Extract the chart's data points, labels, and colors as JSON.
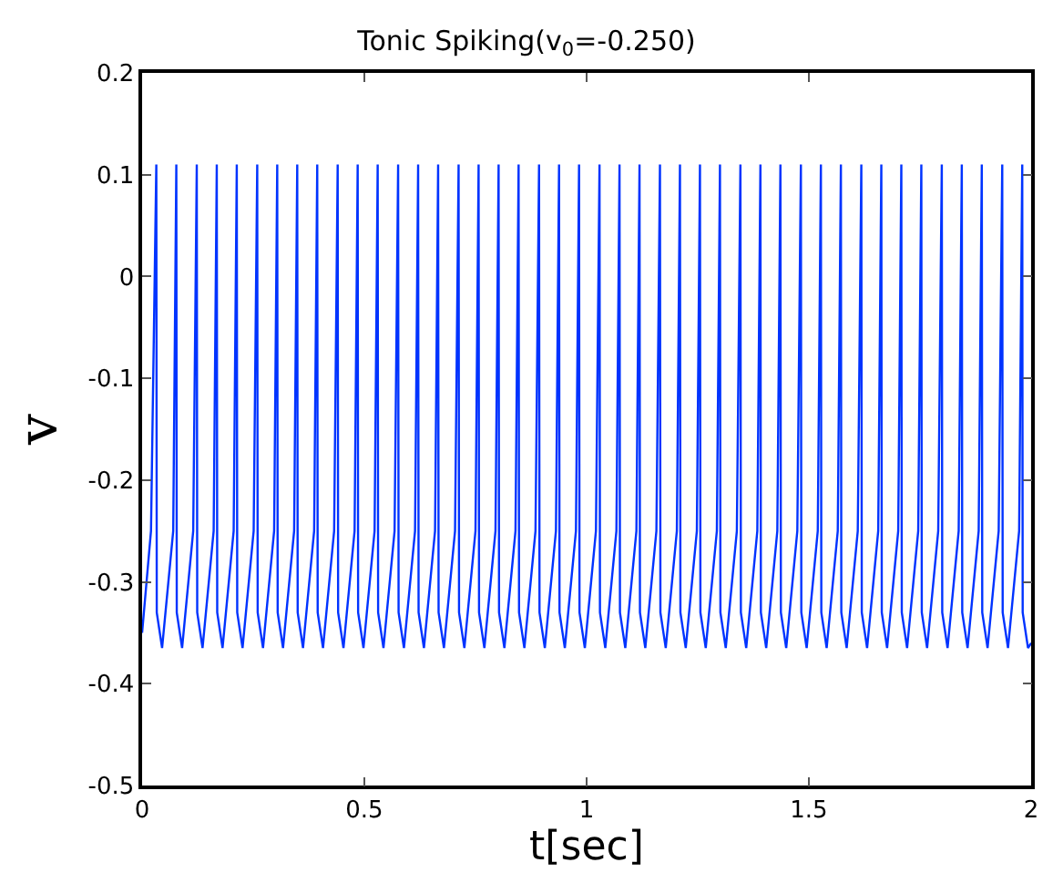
{
  "chart_data": {
    "type": "line",
    "title": "Tonic Spiking(v$_{0}$=-0.250)",
    "xlabel": "t[sec]",
    "ylabel": "v",
    "xlim": [
      0,
      2
    ],
    "xticks": [
      0,
      0.5,
      1,
      1.5,
      2
    ],
    "ylim": [
      -0.5,
      0.2
    ],
    "yticks": [
      -0.5,
      -0.4,
      -0.3,
      -0.2,
      -0.1,
      0,
      0.1,
      0.2
    ],
    "marker": "none",
    "line_style": "solid",
    "series": [
      {
        "color": "#0033ff",
        "x": [
          0,
          0.02,
          0.032,
          0.033,
          0.045,
          0.07,
          0.077,
          0.078,
          0.09,
          0.115,
          0.123,
          0.124,
          0.136,
          0.161,
          0.168,
          0.169,
          0.181,
          0.206,
          0.213,
          0.214,
          0.226,
          0.251,
          0.259,
          0.26,
          0.272,
          0.297,
          0.304,
          0.305,
          0.317,
          0.342,
          0.349,
          0.35,
          0.362,
          0.387,
          0.394,
          0.395,
          0.407,
          0.432,
          0.44,
          0.441,
          0.453,
          0.478,
          0.485,
          0.486,
          0.498,
          0.523,
          0.53,
          0.531,
          0.543,
          0.568,
          0.576,
          0.577,
          0.589,
          0.614,
          0.621,
          0.622,
          0.634,
          0.659,
          0.666,
          0.667,
          0.679,
          0.704,
          0.712,
          0.713,
          0.725,
          0.75,
          0.757,
          0.758,
          0.77,
          0.795,
          0.802,
          0.803,
          0.815,
          0.84,
          0.847,
          0.848,
          0.86,
          0.885,
          0.893,
          0.894,
          0.906,
          0.931,
          0.938,
          0.939,
          0.951,
          0.976,
          0.983,
          0.984,
          0.996,
          1.021,
          1.029,
          1.03,
          1.042,
          1.067,
          1.074,
          1.075,
          1.087,
          1.112,
          1.119,
          1.12,
          1.132,
          1.157,
          1.165,
          1.166,
          1.178,
          1.203,
          1.21,
          1.211,
          1.223,
          1.248,
          1.255,
          1.256,
          1.268,
          1.293,
          1.3,
          1.301,
          1.313,
          1.338,
          1.346,
          1.347,
          1.359,
          1.384,
          1.391,
          1.392,
          1.404,
          1.429,
          1.436,
          1.437,
          1.449,
          1.474,
          1.482,
          1.483,
          1.495,
          1.52,
          1.527,
          1.528,
          1.54,
          1.565,
          1.572,
          1.573,
          1.585,
          1.61,
          1.618,
          1.619,
          1.631,
          1.656,
          1.663,
          1.664,
          1.676,
          1.701,
          1.708,
          1.709,
          1.721,
          1.746,
          1.753,
          1.754,
          1.766,
          1.791,
          1.799,
          1.8,
          1.812,
          1.837,
          1.844,
          1.845,
          1.857,
          1.882,
          1.889,
          1.89,
          1.902,
          1.927,
          1.935,
          1.936,
          1.948,
          1.973,
          1.98,
          1.981,
          1.993,
          2.0
        ],
        "values": [
          -0.35,
          -0.25,
          0.11,
          -0.33,
          -0.365,
          -0.25,
          0.11,
          -0.33,
          -0.365,
          -0.25,
          0.11,
          -0.33,
          -0.365,
          -0.25,
          0.11,
          -0.33,
          -0.365,
          -0.25,
          0.11,
          -0.33,
          -0.365,
          -0.25,
          0.11,
          -0.33,
          -0.365,
          -0.25,
          0.11,
          -0.33,
          -0.365,
          -0.25,
          0.11,
          -0.33,
          -0.365,
          -0.25,
          0.11,
          -0.33,
          -0.365,
          -0.25,
          0.11,
          -0.33,
          -0.365,
          -0.25,
          0.11,
          -0.33,
          -0.365,
          -0.25,
          0.11,
          -0.33,
          -0.365,
          -0.25,
          0.11,
          -0.33,
          -0.365,
          -0.25,
          0.11,
          -0.33,
          -0.365,
          -0.25,
          0.11,
          -0.33,
          -0.365,
          -0.25,
          0.11,
          -0.33,
          -0.365,
          -0.25,
          0.11,
          -0.33,
          -0.365,
          -0.25,
          0.11,
          -0.33,
          -0.365,
          -0.25,
          0.11,
          -0.33,
          -0.365,
          -0.25,
          0.11,
          -0.33,
          -0.365,
          -0.25,
          0.11,
          -0.33,
          -0.365,
          -0.25,
          0.11,
          -0.33,
          -0.365,
          -0.25,
          0.11,
          -0.33,
          -0.365,
          -0.25,
          0.11,
          -0.33,
          -0.365,
          -0.25,
          0.11,
          -0.33,
          -0.365,
          -0.25,
          0.11,
          -0.33,
          -0.365,
          -0.25,
          0.11,
          -0.33,
          -0.365,
          -0.25,
          0.11,
          -0.33,
          -0.365,
          -0.25,
          0.11,
          -0.33,
          -0.365,
          -0.25,
          0.11,
          -0.33,
          -0.365,
          -0.25,
          0.11,
          -0.33,
          -0.365,
          -0.25,
          0.11,
          -0.33,
          -0.365,
          -0.25,
          0.11,
          -0.33,
          -0.365,
          -0.25,
          0.11,
          -0.33,
          -0.365,
          -0.25,
          0.11,
          -0.33,
          -0.365,
          -0.25,
          0.11,
          -0.33,
          -0.365,
          -0.25,
          0.11,
          -0.33,
          -0.365,
          -0.25,
          0.11,
          -0.33,
          -0.365,
          -0.25,
          0.11,
          -0.33,
          -0.365,
          -0.25,
          0.11,
          -0.33,
          -0.365,
          -0.25,
          0.11,
          -0.33,
          -0.365,
          -0.25,
          0.11,
          -0.33,
          -0.365,
          -0.25,
          0.11,
          -0.33,
          -0.365,
          -0.25,
          0.11,
          -0.33,
          -0.365,
          -0.36
        ]
      }
    ]
  }
}
